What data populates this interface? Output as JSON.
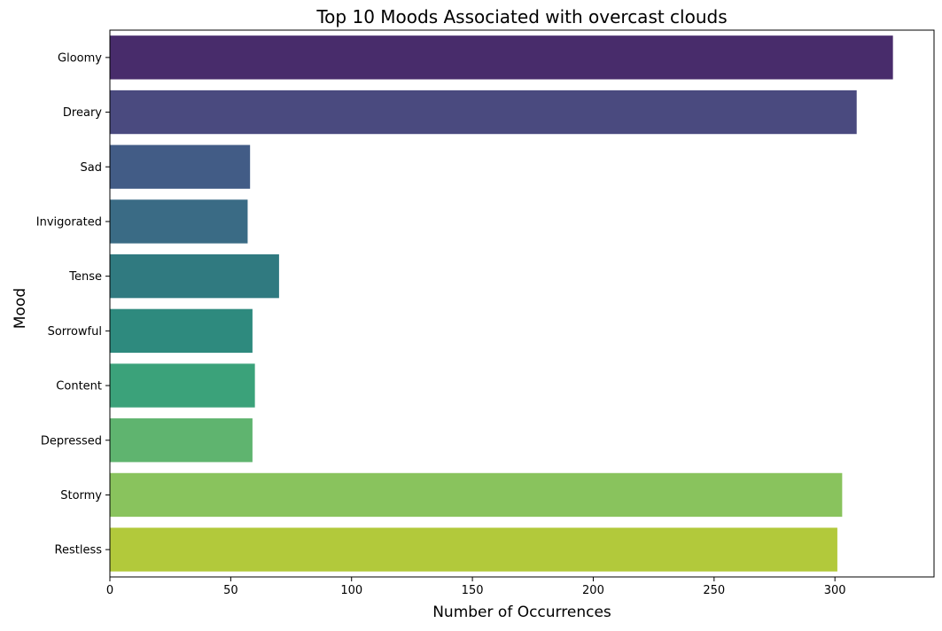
{
  "chart_data": {
    "type": "bar",
    "orientation": "horizontal",
    "title": "Top 10 Moods Associated with overcast clouds",
    "xlabel": "Number of Occurrences",
    "ylabel": "Mood",
    "categories": [
      "Gloomy",
      "Dreary",
      "Sad",
      "Invigorated",
      "Tense",
      "Sorrowful",
      "Content",
      "Depressed",
      "Stormy",
      "Restless"
    ],
    "values": [
      324,
      309,
      58,
      57,
      70,
      59,
      60,
      59,
      303,
      301
    ],
    "colors": [
      "#482c6b",
      "#4a4a7f",
      "#425c86",
      "#3a6b85",
      "#307a80",
      "#2e8a7e",
      "#3ba27a",
      "#5fb46f",
      "#89c35d",
      "#b2c93b"
    ],
    "xlim": [
      0,
      341
    ],
    "xticks": [
      "0",
      "50",
      "100",
      "150",
      "200",
      "250",
      "300"
    ],
    "grid": false,
    "legend": "none"
  }
}
